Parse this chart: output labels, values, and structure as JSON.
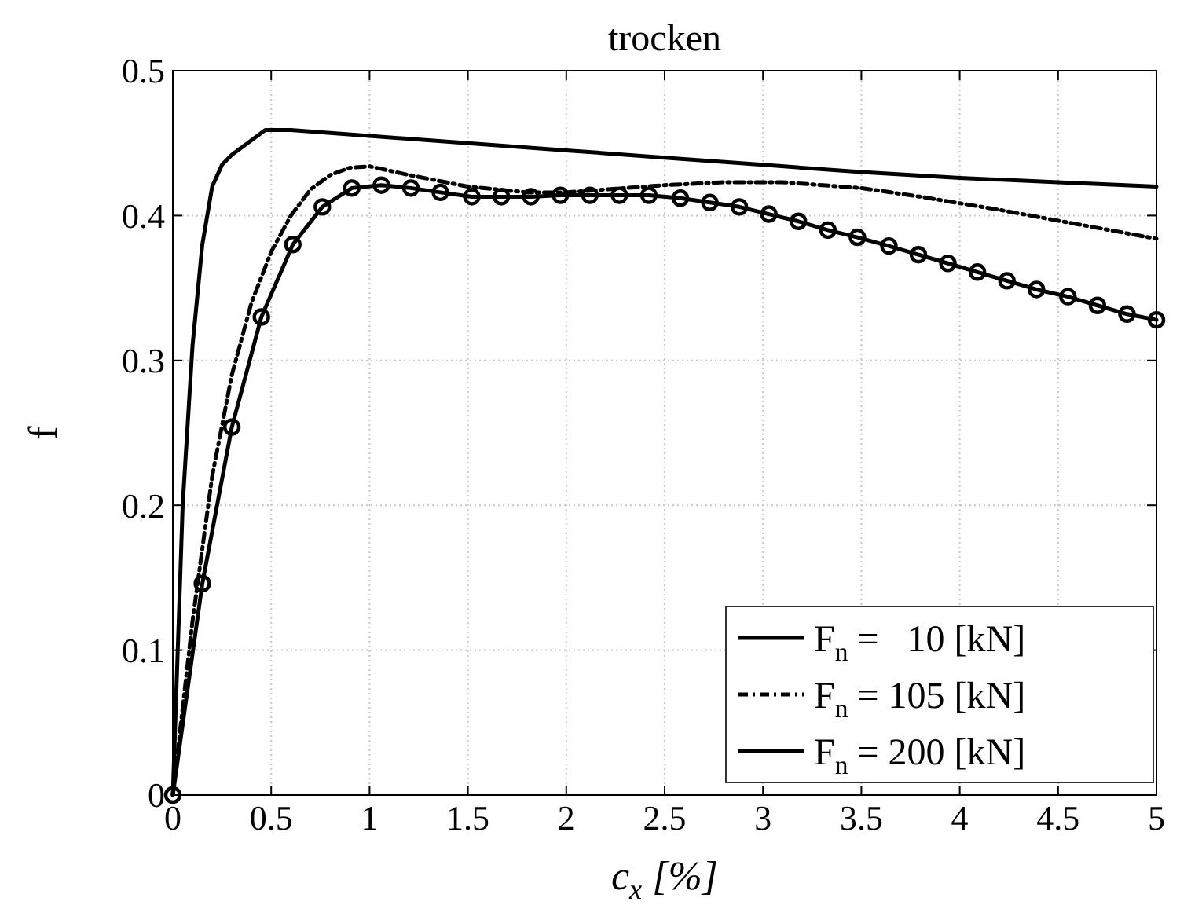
{
  "chart_data": {
    "type": "line",
    "title": "trocken",
    "xlabel": "c$_{x}$ [%]",
    "ylabel": "f",
    "xlim": [
      0,
      5
    ],
    "ylim": [
      0,
      0.5
    ],
    "xticks": [
      0,
      0.5,
      1,
      1.5,
      2,
      2.5,
      3,
      3.5,
      4,
      4.5,
      5
    ],
    "yticks": [
      0,
      0.1,
      0.2,
      0.3,
      0.4,
      0.5
    ],
    "grid": true,
    "legend": "bottom right",
    "series": [
      {
        "name": "F$_{n}$ =   10 [kN]",
        "color": "#000000",
        "line_style": "solid",
        "marker": "none",
        "x": [
          0,
          0.05,
          0.1,
          0.15,
          0.2,
          0.25,
          0.3,
          0.4,
          0.47,
          0.6,
          1,
          1.5,
          2,
          2.5,
          3,
          3.5,
          4,
          4.5,
          5
        ],
        "values": [
          0,
          0.2,
          0.31,
          0.38,
          0.42,
          0.435,
          0.442,
          0.452,
          0.459,
          0.459,
          0.455,
          0.45,
          0.445,
          0.44,
          0.435,
          0.43,
          0.426,
          0.423,
          0.42
        ]
      },
      {
        "name": "F$_{n}$ = 105 [kN]",
        "color": "#000000",
        "line_style": "dashed",
        "marker": "none",
        "x": [
          0,
          0.1,
          0.2,
          0.3,
          0.4,
          0.5,
          0.6,
          0.7,
          0.8,
          0.9,
          1,
          1.2,
          1.5,
          1.8,
          2,
          2.2,
          2.5,
          2.8,
          3.1,
          3.5,
          3.8,
          4.2,
          4.6,
          5
        ],
        "values": [
          0,
          0.12,
          0.22,
          0.29,
          0.34,
          0.375,
          0.4,
          0.418,
          0.428,
          0.433,
          0.434,
          0.428,
          0.42,
          0.416,
          0.416,
          0.418,
          0.421,
          0.423,
          0.423,
          0.419,
          0.413,
          0.404,
          0.394,
          0.384
        ]
      },
      {
        "name": "F$_{n}$ = 200 [kN]",
        "color": "#000000",
        "line_style": "solid",
        "marker": "circle",
        "x": [
          0,
          0.15,
          0.3,
          0.45,
          0.61,
          0.76,
          0.91,
          1.06,
          1.21,
          1.36,
          1.52,
          1.67,
          1.82,
          1.97,
          2.12,
          2.27,
          2.42,
          2.58,
          2.73,
          2.88,
          3.03,
          3.18,
          3.33,
          3.48,
          3.64,
          3.79,
          3.94,
          4.09,
          4.24,
          4.39,
          4.55,
          4.7,
          4.85,
          5
        ],
        "values": [
          0,
          0.146,
          0.254,
          0.33,
          0.38,
          0.406,
          0.419,
          0.421,
          0.419,
          0.416,
          0.413,
          0.413,
          0.413,
          0.414,
          0.414,
          0.414,
          0.414,
          0.412,
          0.409,
          0.406,
          0.401,
          0.396,
          0.39,
          0.385,
          0.379,
          0.373,
          0.367,
          0.361,
          0.355,
          0.349,
          0.344,
          0.338,
          0.332,
          0.328
        ]
      }
    ]
  }
}
